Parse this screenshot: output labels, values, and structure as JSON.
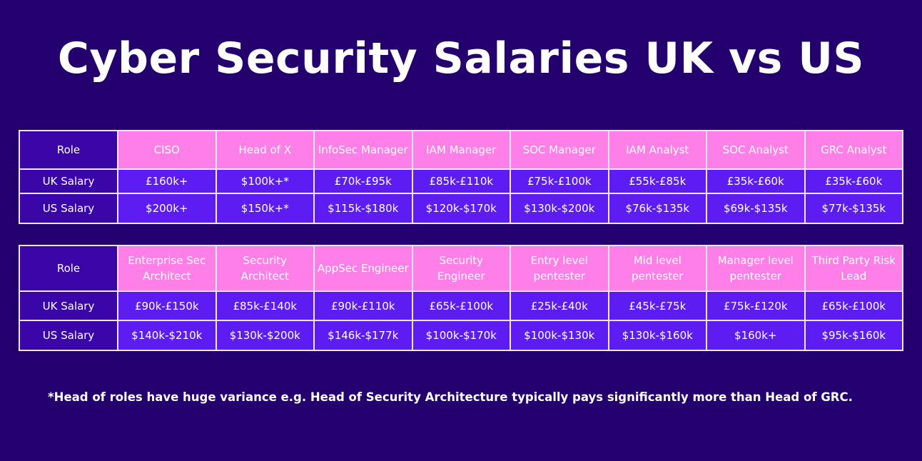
{
  "title": "Cyber Security Salaries UK vs US",
  "tables": [
    {
      "role_label": "Role",
      "uk_label": "UK Salary",
      "us_label": "US Salary",
      "roles": [
        "CISO",
        "Head of X",
        "InfoSec Manager",
        "IAM Manager",
        "SOC Manager",
        "IAM Analyst",
        "SOC Analyst",
        "GRC Analyst"
      ],
      "uk": [
        "£160k+",
        "$100k+*",
        "£70k-£95k",
        "£85k-£110k",
        "£75k-£100k",
        "£55k-£85k",
        "£35k-£60k",
        "£35k-£60k"
      ],
      "us": [
        "$200k+",
        "$150k+*",
        "$115k-$180k",
        "$120k-$170k",
        "$130k-$200k",
        "$76k-$135k",
        "$69k-$135k",
        "$77k-$135k"
      ]
    },
    {
      "role_label": "Role",
      "uk_label": "UK Salary",
      "us_label": "US Salary",
      "roles": [
        "Enterprise Sec Architect",
        "Security Architect",
        "AppSec Engineer",
        "Security Engineer",
        "Entry level pentester",
        "Mid level pentester",
        "Manager level pentester",
        "Third Party Risk Lead"
      ],
      "uk": [
        "£90k-£150k",
        "£85k-£140k",
        "£90k-£110k",
        "£65k-£100k",
        "£25k-£40k",
        "£45k-£75k",
        "£75k-£120k",
        "£65k-£100k"
      ],
      "us": [
        "$140k-$210k",
        "$130k-$200k",
        "$146k-$177k",
        "$100k-$170k",
        "$100k-$130k",
        "$130k-$160k",
        "$160k+",
        "$95k-$160k"
      ]
    }
  ],
  "footnote": "*Head of roles have huge variance e.g. Head of Security Architecture typically pays significantly more than Head of GRC.",
  "colors": {
    "background": "#23006e",
    "header_pink": "#ff7fe8",
    "cell_violet": "#5c1cf2",
    "label_dark": "#3b06a8",
    "border": "#f2e6ff",
    "text": "#ffffff"
  }
}
